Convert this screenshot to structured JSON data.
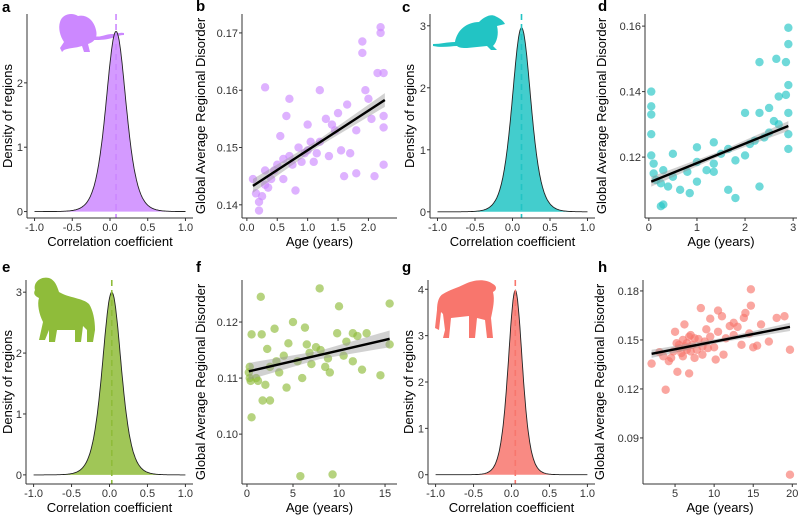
{
  "chart_data": [
    {
      "panel": "a",
      "type": "area",
      "letter": "a",
      "species_icon": "rat-silhouette-icon",
      "color": "#cc88ff",
      "xlabel": "Correlation coefficient",
      "ylabel": "Density of regions",
      "xlim": [
        -1.1,
        1.1
      ],
      "ylim": [
        -0.1,
        3.07
      ],
      "xticks": [
        -1.0,
        -0.5,
        0.0,
        0.5,
        1.0
      ],
      "xtick_labels": [
        "-1.0",
        "-0.5",
        "0.0",
        "0.5",
        "1.0"
      ],
      "yticks": [
        0,
        1,
        2
      ],
      "ytick_labels": [
        "0",
        "1",
        "2"
      ],
      "density": {
        "mean": 0.08,
        "peak": 2.8,
        "range": [
          -1.0,
          1.0
        ]
      }
    },
    {
      "panel": "b",
      "type": "scatter",
      "letter": "b",
      "color": "#cc88ff",
      "xlabel": "Age (years)",
      "ylabel": "Global Average Regional Disorder",
      "xlim": [
        -0.08,
        2.47
      ],
      "ylim": [
        0.1377,
        0.1733
      ],
      "xticks": [
        0,
        0.5,
        1,
        1.5,
        2
      ],
      "xtick_labels": [
        "0.0",
        "0.5",
        "1.0",
        "1.5",
        "2.0"
      ],
      "yticks": [
        0.14,
        0.15,
        0.16,
        0.17
      ],
      "ytick_labels": [
        "0.14",
        "0.15",
        "0.16",
        "0.17"
      ],
      "fit": {
        "x": [
          0.1,
          2.27
        ],
        "y": [
          0.1433,
          0.1583
        ],
        "ci": 0.0012
      },
      "points": [
        [
          0.1,
          0.1445
        ],
        [
          0.15,
          0.142
        ],
        [
          0.2,
          0.139
        ],
        [
          0.2,
          0.1405
        ],
        [
          0.25,
          0.1415
        ],
        [
          0.3,
          0.146
        ],
        [
          0.3,
          0.1605
        ],
        [
          0.35,
          0.143
        ],
        [
          0.4,
          0.1445
        ],
        [
          0.5,
          0.147
        ],
        [
          0.55,
          0.152
        ],
        [
          0.6,
          0.1445
        ],
        [
          0.65,
          0.1555
        ],
        [
          0.7,
          0.1485
        ],
        [
          0.7,
          0.1585
        ],
        [
          0.8,
          0.1425
        ],
        [
          0.85,
          0.15
        ],
        [
          0.9,
          0.1475
        ],
        [
          1.0,
          0.154
        ],
        [
          1.0,
          0.1495
        ],
        [
          1.1,
          0.1475
        ],
        [
          1.2,
          0.16
        ],
        [
          1.2,
          0.151
        ],
        [
          1.3,
          0.155
        ],
        [
          1.35,
          0.1485
        ],
        [
          1.4,
          0.154
        ],
        [
          1.5,
          0.156
        ],
        [
          1.55,
          0.1495
        ],
        [
          1.6,
          0.145
        ],
        [
          1.65,
          0.1575
        ],
        [
          1.7,
          0.149
        ],
        [
          1.8,
          0.1455
        ],
        [
          1.8,
          0.153
        ],
        [
          1.9,
          0.1665
        ],
        [
          1.9,
          0.1685
        ],
        [
          1.95,
          0.16
        ],
        [
          2.0,
          0.1585
        ],
        [
          2.05,
          0.155
        ],
        [
          2.1,
          0.145
        ],
        [
          2.15,
          0.163
        ],
        [
          2.2,
          0.171
        ],
        [
          2.2,
          0.17
        ],
        [
          2.25,
          0.163
        ],
        [
          2.25,
          0.1555
        ],
        [
          2.25,
          0.147
        ],
        [
          2.25,
          0.1535
        ],
        [
          0.45,
          0.146
        ],
        [
          0.6,
          0.148
        ],
        [
          0.95,
          0.149
        ],
        [
          1.05,
          0.151
        ],
        [
          1.15,
          0.149
        ],
        [
          1.45,
          0.153
        ],
        [
          0.75,
          0.147
        ],
        [
          0.3,
          0.1435
        ]
      ]
    },
    {
      "panel": "c",
      "type": "area",
      "letter": "c",
      "species_icon": "mouse-silhouette-icon",
      "color": "#22c4c4",
      "xlabel": "Correlation coefficient",
      "ylabel": "Density of regions",
      "xlim": [
        -1.1,
        1.1
      ],
      "ylim": [
        -0.1,
        3.19
      ],
      "xticks": [
        -1.0,
        -0.5,
        0.0,
        0.5,
        1.0
      ],
      "xtick_labels": [
        "-1.0",
        "-0.5",
        "0.0",
        "0.5",
        "1.0"
      ],
      "yticks": [
        0,
        1,
        2,
        3
      ],
      "ytick_labels": [
        "0",
        "1",
        "2",
        "3"
      ],
      "density": {
        "mean": 0.12,
        "peak": 2.97,
        "range": [
          -1.0,
          1.0
        ]
      }
    },
    {
      "panel": "d",
      "type": "scatter",
      "letter": "d",
      "color": "#22c4c4",
      "xlabel": "Age (years)",
      "ylabel": "Global Average Regional Disorder",
      "xlim": [
        -0.08,
        3.08
      ],
      "ylim": [
        0.1014,
        0.1637
      ],
      "xticks": [
        0,
        1,
        2,
        3
      ],
      "xtick_labels": [
        "0",
        "1",
        "2",
        "3"
      ],
      "yticks": [
        0.12,
        0.14,
        0.16
      ],
      "ytick_labels": [
        "0.12",
        "0.14",
        "0.16"
      ],
      "fit": {
        "x": [
          0.05,
          2.9
        ],
        "y": [
          0.1125,
          0.1295
        ],
        "ci": 0.0015
      },
      "points": [
        [
          0.05,
          0.14
        ],
        [
          0.05,
          0.1355
        ],
        [
          0.05,
          0.133
        ],
        [
          0.05,
          0.127
        ],
        [
          0.05,
          0.1205
        ],
        [
          0.1,
          0.118
        ],
        [
          0.1,
          0.115
        ],
        [
          0.25,
          0.105
        ],
        [
          0.3,
          0.1055
        ],
        [
          0.25,
          0.112
        ],
        [
          0.3,
          0.116
        ],
        [
          0.5,
          0.121
        ],
        [
          0.5,
          0.114
        ],
        [
          0.65,
          0.11
        ],
        [
          0.8,
          0.1155
        ],
        [
          0.85,
          0.109
        ],
        [
          1.0,
          0.123
        ],
        [
          1.0,
          0.1185
        ],
        [
          1.0,
          0.1125
        ],
        [
          1.35,
          0.1245
        ],
        [
          1.35,
          0.118
        ],
        [
          1.35,
          0.1155
        ],
        [
          1.65,
          0.1225
        ],
        [
          1.65,
          0.11
        ],
        [
          1.8,
          0.1075
        ],
        [
          1.8,
          0.119
        ],
        [
          2.0,
          0.1335
        ],
        [
          2.0,
          0.1205
        ],
        [
          2.2,
          0.125
        ],
        [
          2.3,
          0.149
        ],
        [
          2.3,
          0.1335
        ],
        [
          2.3,
          0.111
        ],
        [
          2.5,
          0.135
        ],
        [
          2.5,
          0.1275
        ],
        [
          2.65,
          0.15
        ],
        [
          2.7,
          0.1385
        ],
        [
          2.7,
          0.13
        ],
        [
          2.85,
          0.149
        ],
        [
          2.85,
          0.139
        ],
        [
          2.9,
          0.1595
        ],
        [
          2.9,
          0.1545
        ],
        [
          2.9,
          0.142
        ],
        [
          2.9,
          0.1335
        ],
        [
          2.9,
          0.1225
        ],
        [
          2.9,
          0.127
        ],
        [
          0.15,
          0.113
        ],
        [
          0.4,
          0.111
        ],
        [
          1.2,
          0.116
        ],
        [
          1.5,
          0.121
        ],
        [
          2.1,
          0.124
        ],
        [
          2.4,
          0.126
        ],
        [
          2.6,
          0.131
        ]
      ]
    },
    {
      "panel": "e",
      "type": "area",
      "letter": "e",
      "species_icon": "dog-silhouette-icon",
      "color": "#8fbc3a",
      "xlabel": "Correlation coefficient",
      "ylabel": "Density of regions",
      "xlim": [
        -1.1,
        1.1
      ],
      "ylim": [
        -0.15,
        3.2
      ],
      "xticks": [
        -1.0,
        -0.5,
        0.0,
        0.5,
        1.0
      ],
      "xtick_labels": [
        "-1.0",
        "-0.5",
        "0.0",
        "0.5",
        "1.0"
      ],
      "yticks": [
        0,
        1,
        2,
        3
      ],
      "ytick_labels": [
        "0",
        "1",
        "2",
        "3"
      ],
      "density": {
        "mean": 0.03,
        "peak": 3.0,
        "range": [
          -1.0,
          1.0
        ]
      }
    },
    {
      "panel": "f",
      "type": "scatter",
      "letter": "f",
      "color": "#8fbc3a",
      "xlabel": "Age (years)",
      "ylabel": "Global Average Regional Disorder",
      "xlim": [
        -0.54,
        16.3
      ],
      "ylim": [
        0.0911,
        0.1275
      ],
      "xticks": [
        0,
        5,
        10,
        15
      ],
      "xtick_labels": [
        "0",
        "5",
        "10",
        "15"
      ],
      "yticks": [
        0.1,
        0.11,
        0.12
      ],
      "ytick_labels": [
        "0.10",
        "0.11",
        "0.12"
      ],
      "fit": {
        "x": [
          0.2,
          15.5
        ],
        "y": [
          0.1112,
          0.117
        ],
        "ci": 0.0015
      },
      "points": [
        [
          0.2,
          0.111
        ],
        [
          0.3,
          0.11
        ],
        [
          0.4,
          0.1095
        ],
        [
          0.5,
          0.103
        ],
        [
          0.5,
          0.1178
        ],
        [
          1.0,
          0.11
        ],
        [
          1.5,
          0.1245
        ],
        [
          1.6,
          0.1178
        ],
        [
          1.7,
          0.106
        ],
        [
          2.0,
          0.1088
        ],
        [
          2.2,
          0.1152
        ],
        [
          2.5,
          0.106
        ],
        [
          2.5,
          0.112
        ],
        [
          3.0,
          0.1188
        ],
        [
          3.5,
          0.111
        ],
        [
          4.3,
          0.1083
        ],
        [
          4.5,
          0.1162
        ],
        [
          5.0,
          0.12
        ],
        [
          5.5,
          0.113
        ],
        [
          5.8,
          0.0925
        ],
        [
          6.0,
          0.11
        ],
        [
          6.3,
          0.119
        ],
        [
          6.5,
          0.116
        ],
        [
          7.0,
          0.1125
        ],
        [
          7.9,
          0.126
        ],
        [
          8.0,
          0.115
        ],
        [
          8.5,
          0.112
        ],
        [
          9.0,
          0.111
        ],
        [
          9.3,
          0.0928
        ],
        [
          9.8,
          0.118
        ],
        [
          10.0,
          0.1228
        ],
        [
          10.5,
          0.114
        ],
        [
          11.5,
          0.118
        ],
        [
          11.5,
          0.113
        ],
        [
          12.5,
          0.1115
        ],
        [
          13.0,
          0.118
        ],
        [
          14.5,
          0.1105
        ],
        [
          15.5,
          0.1233
        ],
        [
          15.5,
          0.116
        ],
        [
          0.3,
          0.112
        ],
        [
          1.2,
          0.1095
        ],
        [
          3.2,
          0.113
        ],
        [
          4.0,
          0.114
        ],
        [
          6.8,
          0.1145
        ],
        [
          7.5,
          0.1155
        ],
        [
          8.8,
          0.1135
        ],
        [
          10.8,
          0.1165
        ],
        [
          12.0,
          0.1175
        ]
      ]
    },
    {
      "panel": "g",
      "type": "area",
      "letter": "g",
      "species_icon": "baboon-silhouette-icon",
      "color": "#f8766d",
      "xlabel": "Correlation coefficient",
      "ylabel": "Density of regions",
      "xlim": [
        -1.1,
        1.1
      ],
      "ylim": [
        -0.2,
        4.2
      ],
      "xticks": [
        -1.0,
        -0.5,
        0.0,
        0.5,
        1.0
      ],
      "xtick_labels": [
        "-1.0",
        "-0.5",
        "0.0",
        "0.5",
        "1.0"
      ],
      "yticks": [
        0,
        1,
        2,
        3,
        4
      ],
      "ytick_labels": [
        "0",
        "1",
        "2",
        "3",
        "4"
      ],
      "density": {
        "mean": 0.05,
        "peak": 3.98,
        "range": [
          -1.0,
          1.0
        ]
      }
    },
    {
      "panel": "h",
      "type": "scatter",
      "letter": "h",
      "color": "#f8766d",
      "xlabel": "Age (years)",
      "ylabel": "Global Average Regional Disorder",
      "xlim": [
        0.9,
        20.6
      ],
      "ylim": [
        0.0618,
        0.1867
      ],
      "xticks": [
        5,
        10,
        15,
        20
      ],
      "xtick_labels": [
        "5",
        "10",
        "15",
        "20"
      ],
      "yticks": [
        0.09,
        0.12,
        0.15,
        0.18
      ],
      "ytick_labels": [
        "0.09",
        "0.12",
        "0.15",
        "0.18"
      ],
      "fit": {
        "x": [
          2,
          19.7
        ],
        "y": [
          0.1415,
          0.158
        ],
        "ci": 0.0025
      },
      "points": [
        [
          2,
          0.1355
        ],
        [
          3,
          0.1425
        ],
        [
          3.8,
          0.1195
        ],
        [
          4.5,
          0.139
        ],
        [
          5,
          0.155
        ],
        [
          5.3,
          0.1305
        ],
        [
          5.5,
          0.145
        ],
        [
          5.8,
          0.142
        ],
        [
          6,
          0.15
        ],
        [
          6.2,
          0.1595
        ],
        [
          6.5,
          0.148
        ],
        [
          6.8,
          0.1295
        ],
        [
          7,
          0.143
        ],
        [
          7,
          0.153
        ],
        [
          7.5,
          0.139
        ],
        [
          8,
          0.1505
        ],
        [
          8.3,
          0.1695
        ],
        [
          8.5,
          0.146
        ],
        [
          9,
          0.1565
        ],
        [
          9.5,
          0.163
        ],
        [
          10,
          0.1455
        ],
        [
          10.2,
          0.138
        ],
        [
          10.5,
          0.168
        ],
        [
          11,
          0.1645
        ],
        [
          11.5,
          0.151
        ],
        [
          12,
          0.1585
        ],
        [
          12.5,
          0.1605
        ],
        [
          13,
          0.158
        ],
        [
          13.5,
          0.147
        ],
        [
          13.8,
          0.1635
        ],
        [
          14,
          0.1665
        ],
        [
          14.5,
          0.154
        ],
        [
          14.7,
          0.181
        ],
        [
          14.7,
          0.171
        ],
        [
          15,
          0.1455
        ],
        [
          15.5,
          0.1465
        ],
        [
          16,
          0.1595
        ],
        [
          17,
          0.149
        ],
        [
          18,
          0.1635
        ],
        [
          19,
          0.1645
        ],
        [
          19.7,
          0.144
        ],
        [
          19.7,
          0.0675
        ],
        [
          5.5,
          0.147
        ],
        [
          6.5,
          0.144
        ],
        [
          7.5,
          0.151
        ],
        [
          8.5,
          0.141
        ],
        [
          9.5,
          0.152
        ],
        [
          4.8,
          0.143
        ],
        [
          5.2,
          0.148
        ],
        [
          6,
          0.14
        ],
        [
          6.3,
          0.146
        ],
        [
          6.8,
          0.152
        ],
        [
          7.2,
          0.147
        ],
        [
          7.8,
          0.144
        ],
        [
          8.8,
          0.149
        ],
        [
          9.2,
          0.145
        ],
        [
          10.5,
          0.155
        ],
        [
          11.2,
          0.141
        ],
        [
          12.5,
          0.153
        ],
        [
          4.2,
          0.137
        ],
        [
          3.5,
          0.14
        ]
      ]
    }
  ]
}
